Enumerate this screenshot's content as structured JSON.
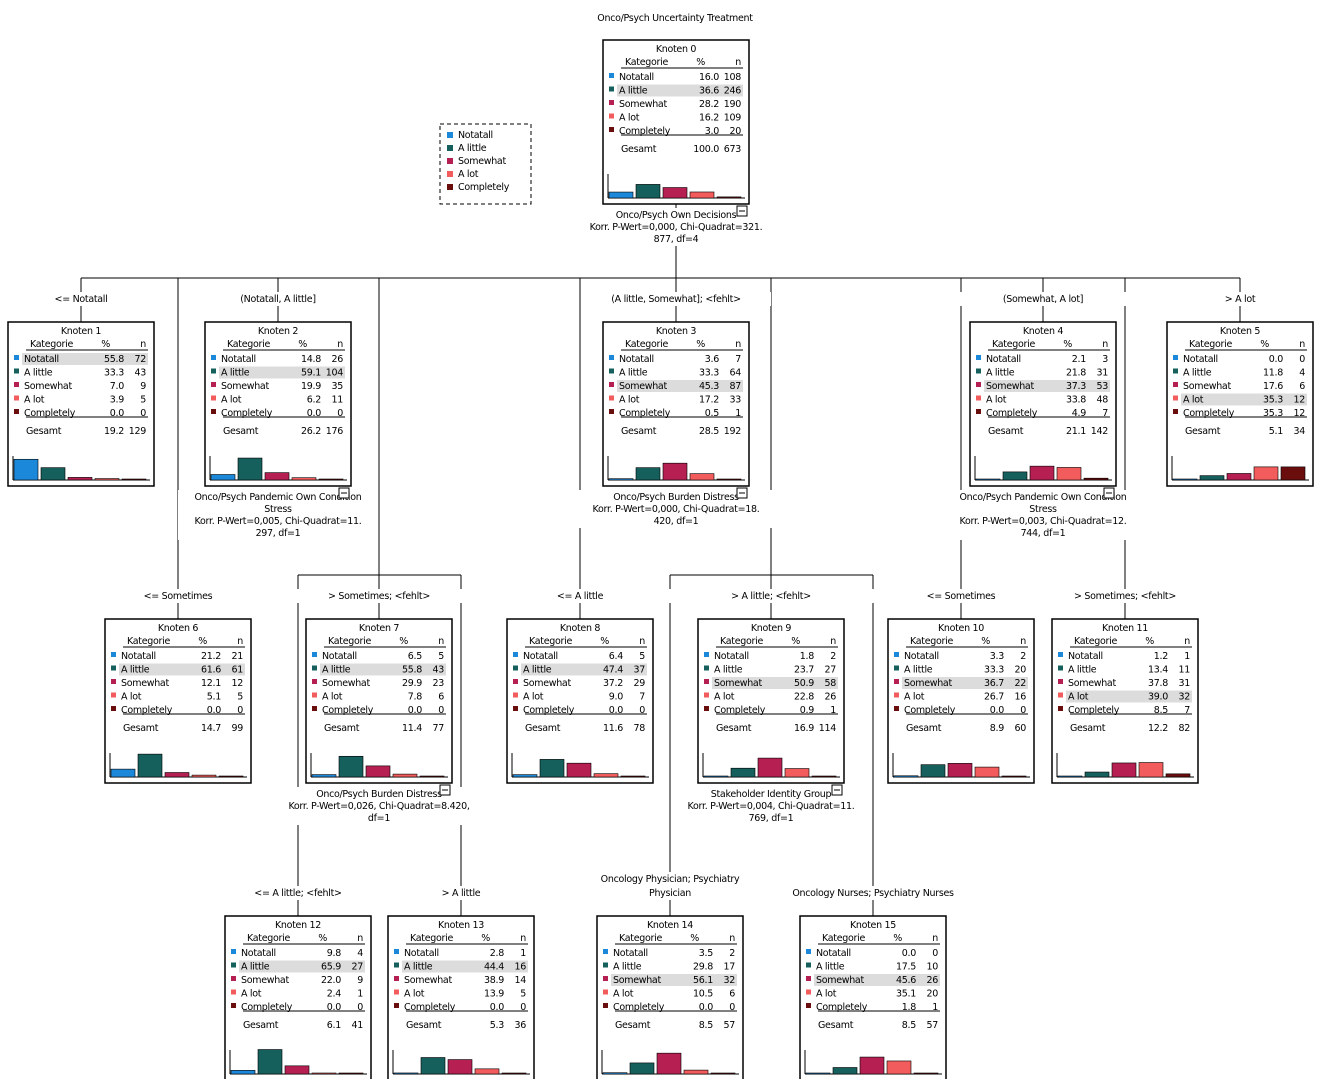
{
  "tree_title": "Onco/Psych Uncertainty Treatment",
  "node_word": "Knoten",
  "table_headers": {
    "category": "Kategorie",
    "percent": "%",
    "n": "n"
  },
  "total_label": "Gesamt",
  "categories": [
    "Notatall",
    "A little",
    "Somewhat",
    "A lot",
    "Completely"
  ],
  "category_colors": [
    "#1c88d9",
    "#15605d",
    "#b51f52",
    "#f25c5c",
    "#6a0d0d"
  ],
  "legend": {
    "items": [
      "Notatall",
      "A little",
      "Somewhat",
      "A lot",
      "Completely"
    ]
  },
  "nodes": [
    {
      "id": 0,
      "percents": [
        "16.0",
        "36.6",
        "28.2",
        "16.2",
        "3.0"
      ],
      "counts": [
        108,
        246,
        190,
        109,
        20
      ],
      "total_pct": "100.0",
      "total_n": 673,
      "modal": 1,
      "collapse": true
    },
    {
      "id": 1,
      "percents": [
        "55.8",
        "33.3",
        "7.0",
        "3.9",
        "0.0"
      ],
      "counts": [
        72,
        43,
        9,
        5,
        0
      ],
      "total_pct": "19.2",
      "total_n": 129,
      "modal": 0,
      "collapse": false
    },
    {
      "id": 2,
      "percents": [
        "14.8",
        "59.1",
        "19.9",
        "6.2",
        "0.0"
      ],
      "counts": [
        26,
        104,
        35,
        11,
        0
      ],
      "total_pct": "26.2",
      "total_n": 176,
      "modal": 1,
      "collapse": true
    },
    {
      "id": 3,
      "percents": [
        "3.6",
        "33.3",
        "45.3",
        "17.2",
        "0.5"
      ],
      "counts": [
        7,
        64,
        87,
        33,
        1
      ],
      "total_pct": "28.5",
      "total_n": 192,
      "modal": 2,
      "collapse": true
    },
    {
      "id": 4,
      "percents": [
        "2.1",
        "21.8",
        "37.3",
        "33.8",
        "4.9"
      ],
      "counts": [
        3,
        31,
        53,
        48,
        7
      ],
      "total_pct": "21.1",
      "total_n": 142,
      "modal": 2,
      "collapse": true
    },
    {
      "id": 5,
      "percents": [
        "0.0",
        "11.8",
        "17.6",
        "35.3",
        "35.3"
      ],
      "counts": [
        0,
        4,
        6,
        12,
        12
      ],
      "total_pct": "5.1",
      "total_n": 34,
      "modal": 3,
      "collapse": false
    },
    {
      "id": 6,
      "percents": [
        "21.2",
        "61.6",
        "12.1",
        "5.1",
        "0.0"
      ],
      "counts": [
        21,
        61,
        12,
        5,
        0
      ],
      "total_pct": "14.7",
      "total_n": 99,
      "modal": 1,
      "collapse": false
    },
    {
      "id": 7,
      "percents": [
        "6.5",
        "55.8",
        "29.9",
        "7.8",
        "0.0"
      ],
      "counts": [
        5,
        43,
        23,
        6,
        0
      ],
      "total_pct": "11.4",
      "total_n": 77,
      "modal": 1,
      "collapse": true
    },
    {
      "id": 8,
      "percents": [
        "6.4",
        "47.4",
        "37.2",
        "9.0",
        "0.0"
      ],
      "counts": [
        5,
        37,
        29,
        7,
        0
      ],
      "total_pct": "11.6",
      "total_n": 78,
      "modal": 1,
      "collapse": false
    },
    {
      "id": 9,
      "percents": [
        "1.8",
        "23.7",
        "50.9",
        "22.8",
        "0.9"
      ],
      "counts": [
        2,
        27,
        58,
        26,
        1
      ],
      "total_pct": "16.9",
      "total_n": 114,
      "modal": 2,
      "collapse": true
    },
    {
      "id": 10,
      "percents": [
        "3.3",
        "33.3",
        "36.7",
        "26.7",
        "0.0"
      ],
      "counts": [
        2,
        20,
        22,
        16,
        0
      ],
      "total_pct": "8.9",
      "total_n": 60,
      "modal": 2,
      "collapse": false
    },
    {
      "id": 11,
      "percents": [
        "1.2",
        "13.4",
        "37.8",
        "39.0",
        "8.5"
      ],
      "counts": [
        1,
        11,
        31,
        32,
        7
      ],
      "total_pct": "12.2",
      "total_n": 82,
      "modal": 3,
      "collapse": false
    },
    {
      "id": 12,
      "percents": [
        "9.8",
        "65.9",
        "22.0",
        "2.4",
        "0.0"
      ],
      "counts": [
        4,
        27,
        9,
        1,
        0
      ],
      "total_pct": "6.1",
      "total_n": 41,
      "modal": 1,
      "collapse": false
    },
    {
      "id": 13,
      "percents": [
        "2.8",
        "44.4",
        "38.9",
        "13.9",
        "0.0"
      ],
      "counts": [
        1,
        16,
        14,
        5,
        0
      ],
      "total_pct": "5.3",
      "total_n": 36,
      "modal": 1,
      "collapse": false
    },
    {
      "id": 14,
      "percents": [
        "3.5",
        "29.8",
        "56.1",
        "10.5",
        "0.0"
      ],
      "counts": [
        2,
        17,
        32,
        6,
        0
      ],
      "total_pct": "8.5",
      "total_n": 57,
      "modal": 2,
      "collapse": false
    },
    {
      "id": 15,
      "percents": [
        "0.0",
        "17.5",
        "45.6",
        "35.1",
        "1.8"
      ],
      "counts": [
        0,
        10,
        26,
        20,
        1
      ],
      "total_pct": "8.5",
      "total_n": 57,
      "modal": 2,
      "collapse": false
    }
  ],
  "splits": [
    {
      "parent": 0,
      "lines": [
        "Onco/Psych Own Decisions",
        "Korr. P-Wert=0,000, Chi-Quadrat=321.",
        "877, df=4"
      ]
    },
    {
      "parent": 2,
      "lines": [
        "Onco/Psych Pandemic Own Condition",
        "Stress",
        "Korr. P-Wert=0,005, Chi-Quadrat=11.",
        "297, df=1"
      ]
    },
    {
      "parent": 3,
      "lines": [
        "Onco/Psych Burden Distress",
        "Korr. P-Wert=0,000, Chi-Quadrat=18.",
        "420, df=1"
      ]
    },
    {
      "parent": 4,
      "lines": [
        "Onco/Psych Pandemic Own Condition",
        "Stress",
        "Korr. P-Wert=0,003, Chi-Quadrat=12.",
        "744, df=1"
      ]
    },
    {
      "parent": 7,
      "lines": [
        "Onco/Psych Burden Distress",
        "Korr. P-Wert=0,026, Chi-Quadrat=8.420,",
        "df=1"
      ]
    },
    {
      "parent": 9,
      "lines": [
        "Stakeholder Identity Group",
        "Korr. P-Wert=0,004, Chi-Quadrat=11.",
        "769, df=1"
      ]
    }
  ],
  "branch_labels": [
    {
      "node": 1,
      "lines": [
        "<= Notatall"
      ]
    },
    {
      "node": 2,
      "lines": [
        "(Notatall, A little]"
      ]
    },
    {
      "node": 3,
      "lines": [
        "(A little, Somewhat]; <fehlt>"
      ]
    },
    {
      "node": 4,
      "lines": [
        "(Somewhat, A lot]"
      ]
    },
    {
      "node": 5,
      "lines": [
        "> A lot"
      ]
    },
    {
      "node": 6,
      "lines": [
        "<= Sometimes"
      ]
    },
    {
      "node": 7,
      "lines": [
        "> Sometimes; <fehlt>"
      ]
    },
    {
      "node": 8,
      "lines": [
        "<= A little"
      ]
    },
    {
      "node": 9,
      "lines": [
        "> A little; <fehlt>"
      ]
    },
    {
      "node": 10,
      "lines": [
        "<= Sometimes"
      ]
    },
    {
      "node": 11,
      "lines": [
        "> Sometimes; <fehlt>"
      ]
    },
    {
      "node": 12,
      "lines": [
        "<= A little; <fehlt>"
      ]
    },
    {
      "node": 13,
      "lines": [
        "> A little"
      ]
    },
    {
      "node": 14,
      "lines": [
        "Oncology Physician; Psychiatry",
        "Physician"
      ]
    },
    {
      "node": 15,
      "lines": [
        "Oncology Nurses; Psychiatry Nurses"
      ]
    }
  ]
}
